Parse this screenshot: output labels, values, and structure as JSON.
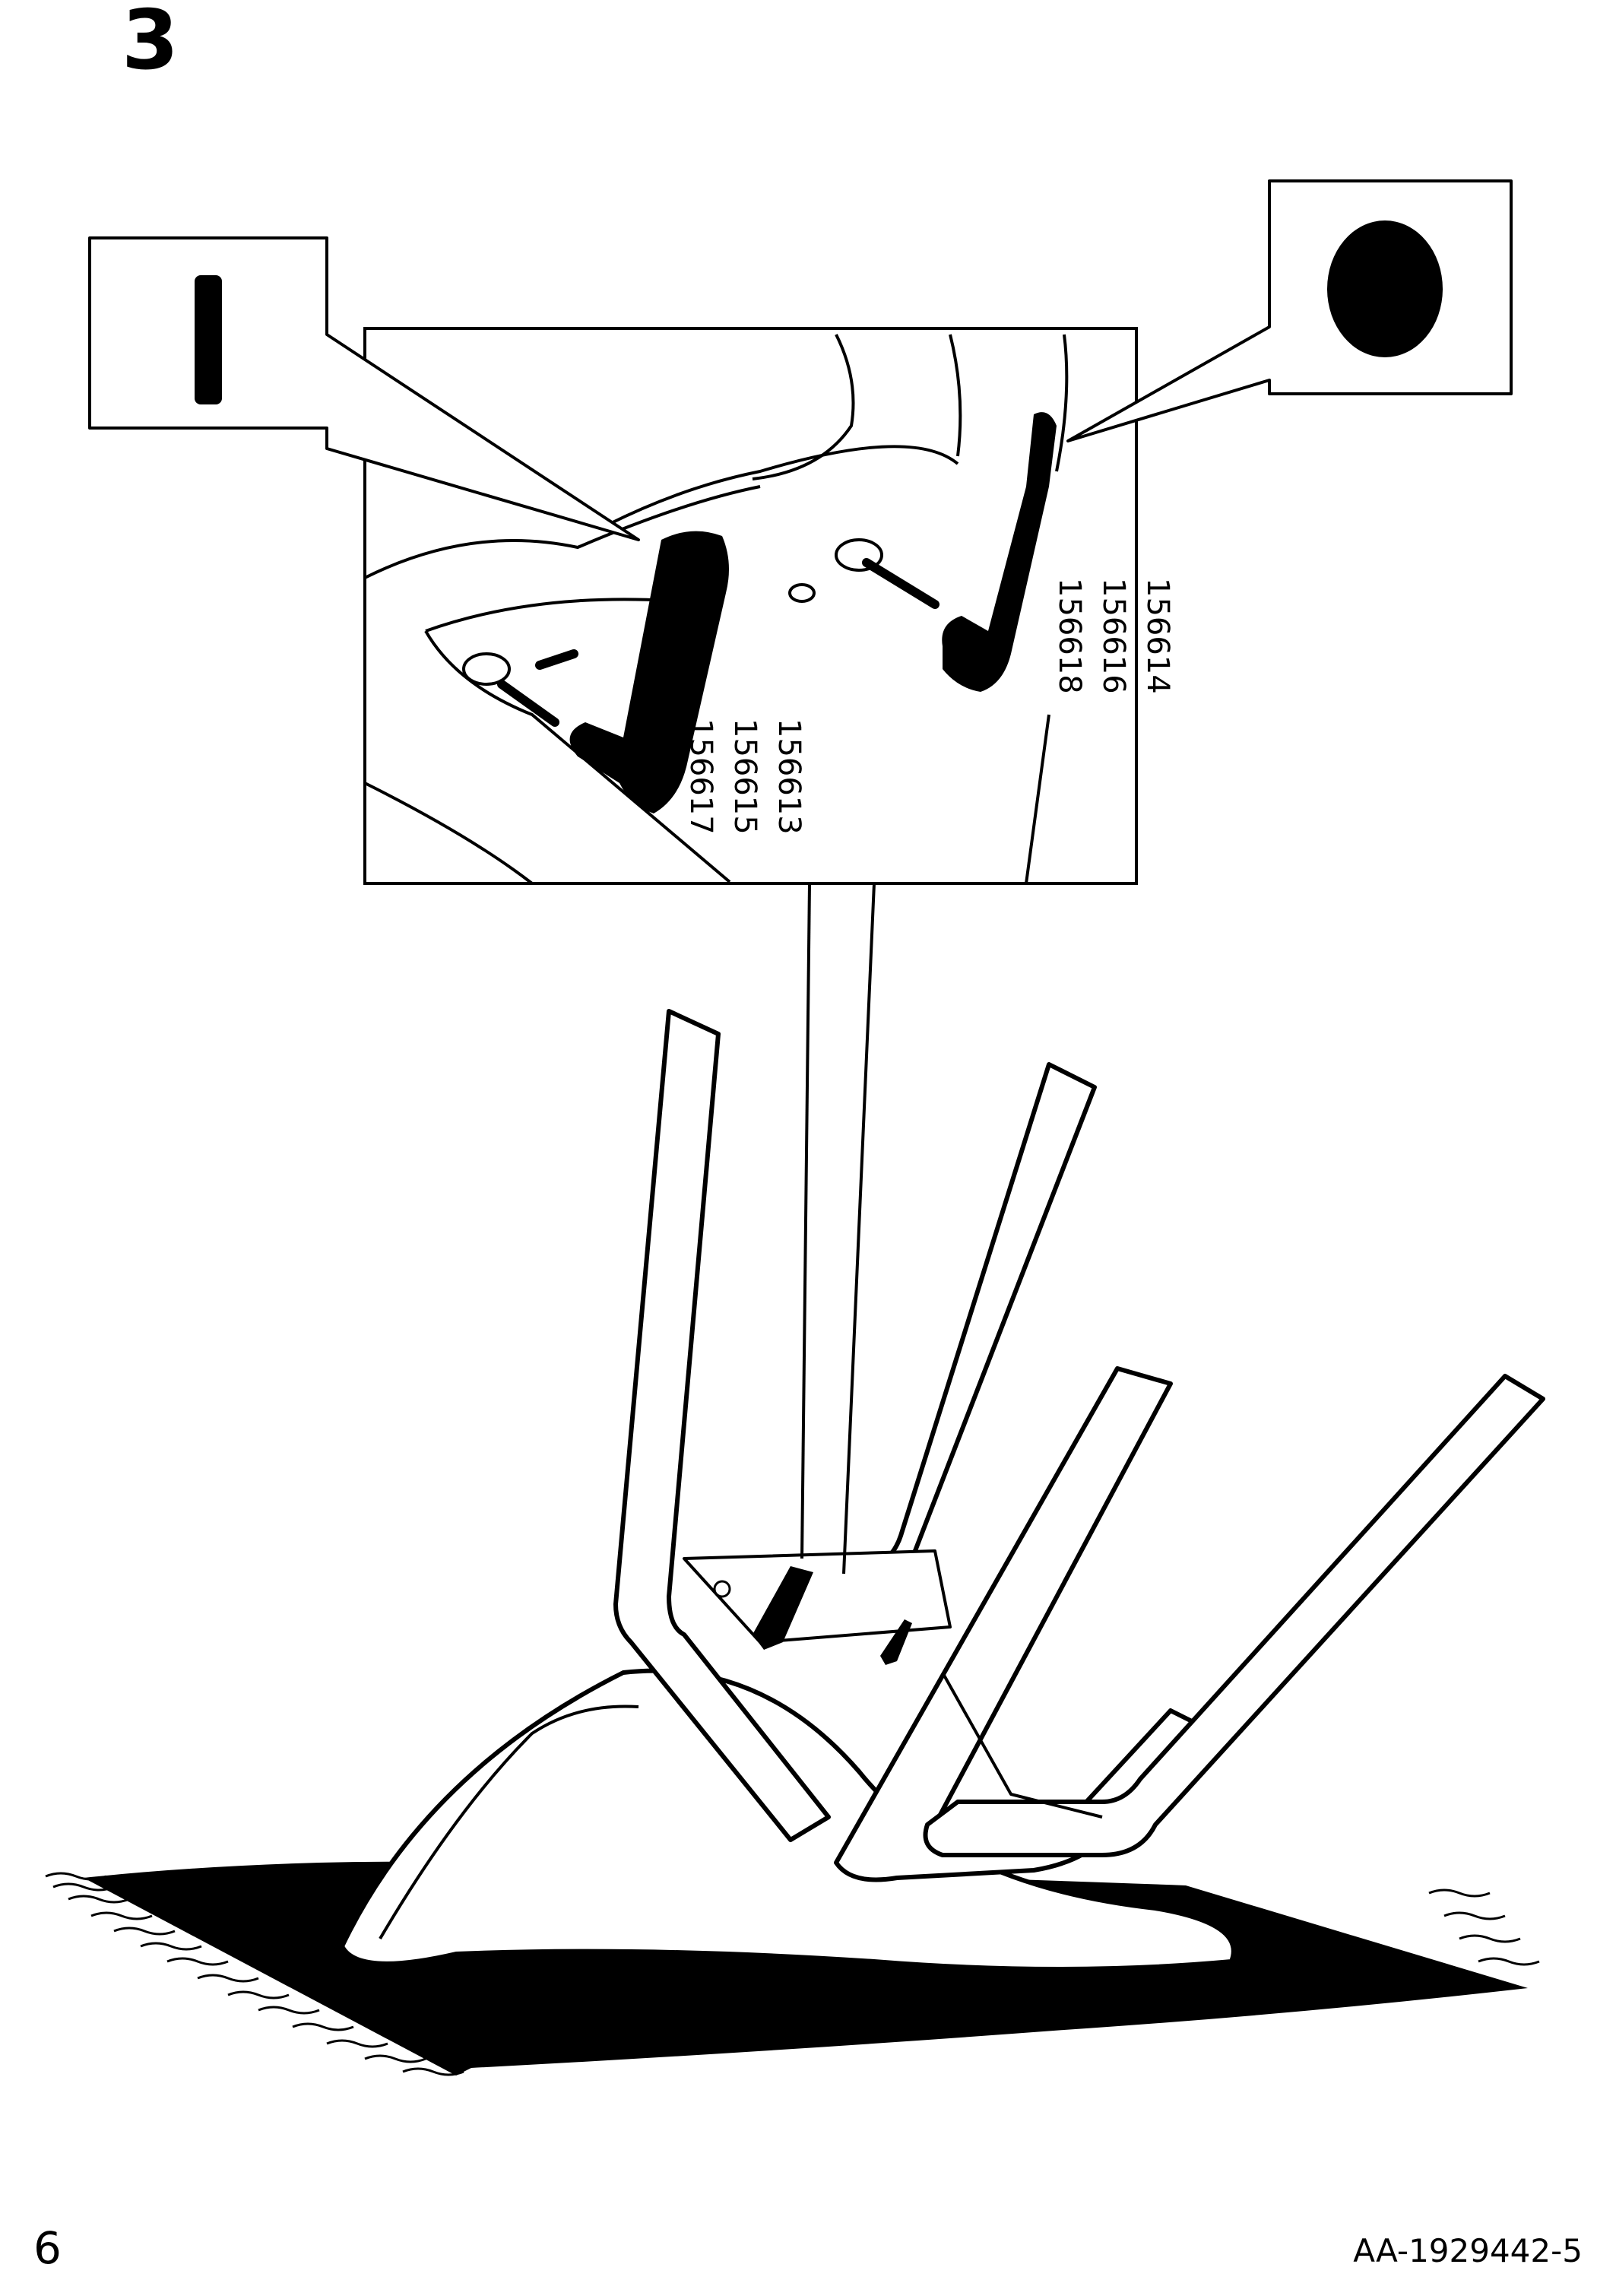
{
  "step": {
    "number": "3"
  },
  "callouts": {
    "left_parts": [
      "156613",
      "156615",
      "156617"
    ],
    "right_parts": [
      "156614",
      "156616",
      "156618"
    ]
  },
  "footer": {
    "page_number": "6",
    "document_code": "AA-1929442-5"
  },
  "colors": {
    "ink": "#000000",
    "paper": "#ffffff"
  }
}
